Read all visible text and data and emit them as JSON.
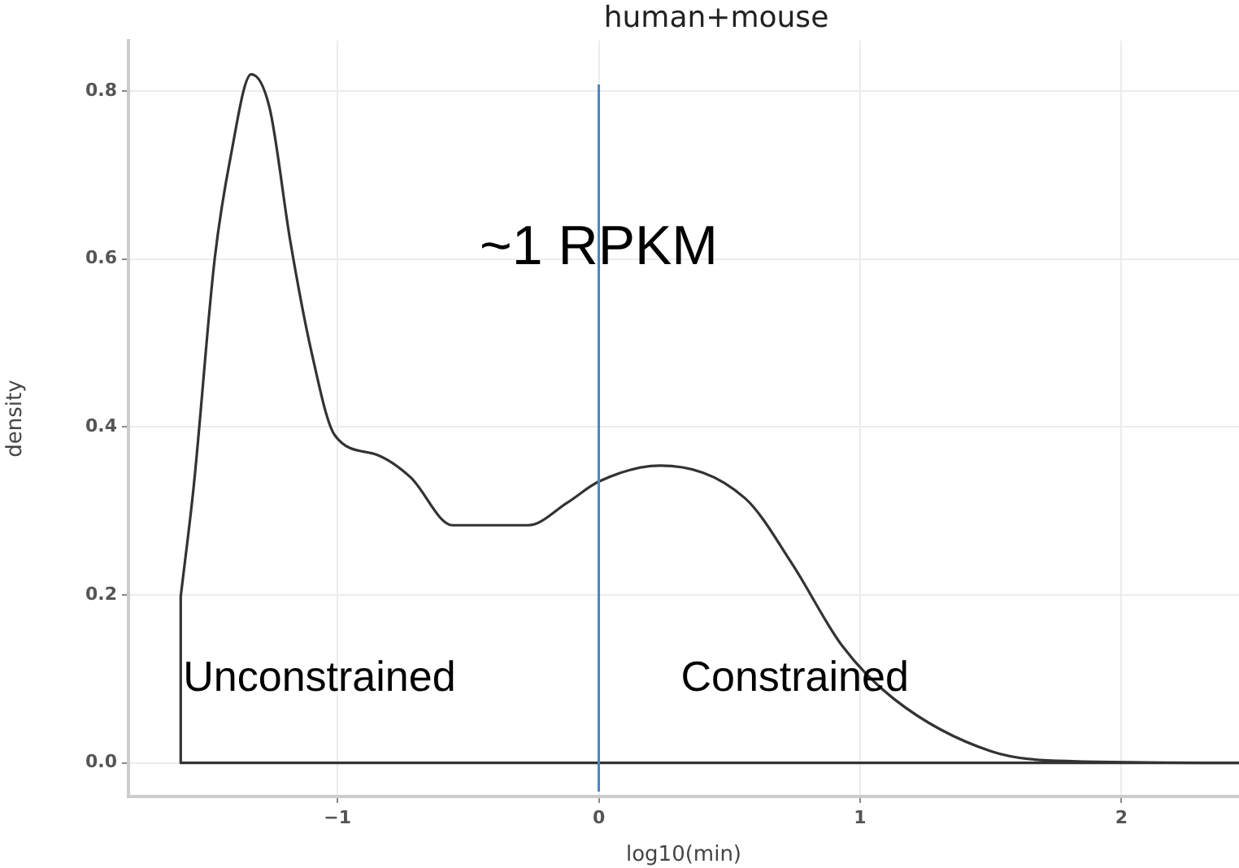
{
  "chart_data": {
    "type": "line",
    "title": "human+mouse",
    "xlabel": "log10(min)",
    "ylabel": "density",
    "series": [
      {
        "color": "#333333",
        "x": [
          -1.6,
          -1.55,
          -1.47,
          -1.41,
          -1.33,
          -1.26,
          -1.18,
          -1.1,
          -1.01,
          -0.85,
          -0.72,
          -0.56,
          -0.27,
          -0.12,
          0,
          0.235,
          0.56,
          0.74,
          0.93,
          1.13,
          1.5,
          1.81,
          2.45
        ],
        "values": [
          0.198,
          0.33,
          0.6,
          0.72,
          0.82,
          0.78,
          0.62,
          0.49,
          0.39,
          0.367,
          0.34,
          0.283,
          0.283,
          0.31,
          0.335,
          0.354,
          0.315,
          0.237,
          0.14,
          0.076,
          0.014,
          0.002,
          0
        ]
      },
      {
        "color": "#333333",
        "x": [
          -1.6,
          -1.6,
          2.45
        ],
        "values": [
          0.198,
          0,
          0
        ]
      }
    ],
    "xlim": [
      -1.8,
      2.45
    ],
    "ylim": [
      -0.04,
      0.86
    ],
    "xticks": [
      {
        "value": -1,
        "label": "−1"
      },
      0,
      1,
      2
    ],
    "yticks": [
      {
        "value": 0,
        "label": "0.0"
      },
      {
        "value": 0.2,
        "label": "0.2"
      },
      {
        "value": 0.4,
        "label": "0.4"
      },
      {
        "value": 0.6,
        "label": "0.6"
      },
      {
        "value": 0.8,
        "label": "0.8"
      }
    ],
    "grid": true,
    "legend": false,
    "marker": "none",
    "line_style": "solid",
    "ref_lines": [
      {
        "axis": "x",
        "value": 0,
        "label": "~1 RPKM",
        "color": "#4a86c8"
      }
    ],
    "annotations": [
      "Unconstrained",
      "Constrained"
    ]
  }
}
